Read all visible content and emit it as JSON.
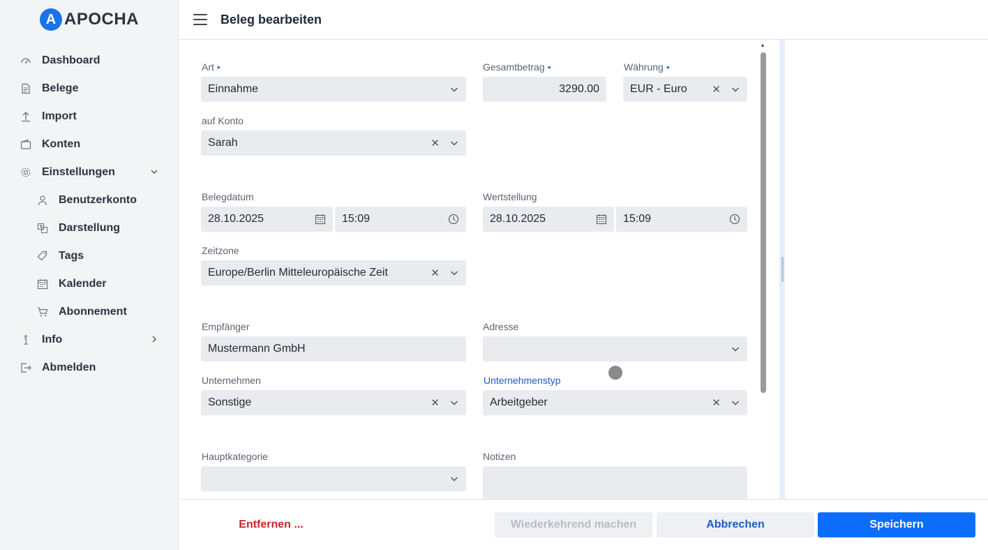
{
  "app": {
    "logo_letter": "A",
    "logo_text": "APOCHA"
  },
  "header": {
    "title": "Beleg bearbeiten"
  },
  "sidebar": {
    "items": [
      {
        "label": "Dashboard",
        "icon": "gauge-icon"
      },
      {
        "label": "Belege",
        "icon": "receipt-icon"
      },
      {
        "label": "Import",
        "icon": "upload-icon"
      },
      {
        "label": "Konten",
        "icon": "wallet-icon"
      },
      {
        "label": "Einstellungen",
        "icon": "gear-icon",
        "expanded": true
      },
      {
        "label": "Benutzerkonto",
        "icon": "user-icon",
        "sub": true
      },
      {
        "label": "Darstellung",
        "icon": "translate-icon",
        "sub": true
      },
      {
        "label": "Tags",
        "icon": "tag-icon",
        "sub": true
      },
      {
        "label": "Kalender",
        "icon": "calendar-icon",
        "sub": true
      },
      {
        "label": "Abonnement",
        "icon": "cart-icon",
        "sub": true
      },
      {
        "label": "Info",
        "icon": "info-icon",
        "expanded": false
      },
      {
        "label": "Abmelden",
        "icon": "logout-icon"
      }
    ]
  },
  "form": {
    "art": {
      "label": "Art",
      "value": "Einnahme"
    },
    "gesamtbetrag": {
      "label": "Gesamtbetrag",
      "value": "3290.00"
    },
    "waehrung": {
      "label": "Währung",
      "value": "EUR - Euro"
    },
    "konto": {
      "label": "auf Konto",
      "value": "Sarah"
    },
    "belegdatum": {
      "label": "Belegdatum",
      "date": "28.10.2025",
      "time": "15:09"
    },
    "wertstellung": {
      "label": "Wertstellung",
      "date": "28.10.2025",
      "time": "15:09"
    },
    "zeitzone": {
      "label": "Zeitzone",
      "value": "Europe/Berlin Mitteleuropäische Zeit"
    },
    "empfaenger": {
      "label": "Empfänger",
      "value": "Mustermann GmbH"
    },
    "adresse": {
      "label": "Adresse",
      "value": ""
    },
    "unternehmen": {
      "label": "Unternehmen",
      "value": "Sonstige"
    },
    "unternehmenstyp": {
      "label": "Unternehmenstyp",
      "value": "Arbeitgeber"
    },
    "hauptkategorie": {
      "label": "Hauptkategorie",
      "value": ""
    },
    "notizen": {
      "label": "Notizen",
      "value": ""
    },
    "required_mark": "•"
  },
  "footer": {
    "remove": "Entfernen ...",
    "recurring": "Wiederkehrend machen",
    "cancel": "Abbrechen",
    "save": "Speichern"
  },
  "colors": {
    "accent": "#0d6efd",
    "danger": "#c62828",
    "field_bg": "#e9ebee"
  }
}
